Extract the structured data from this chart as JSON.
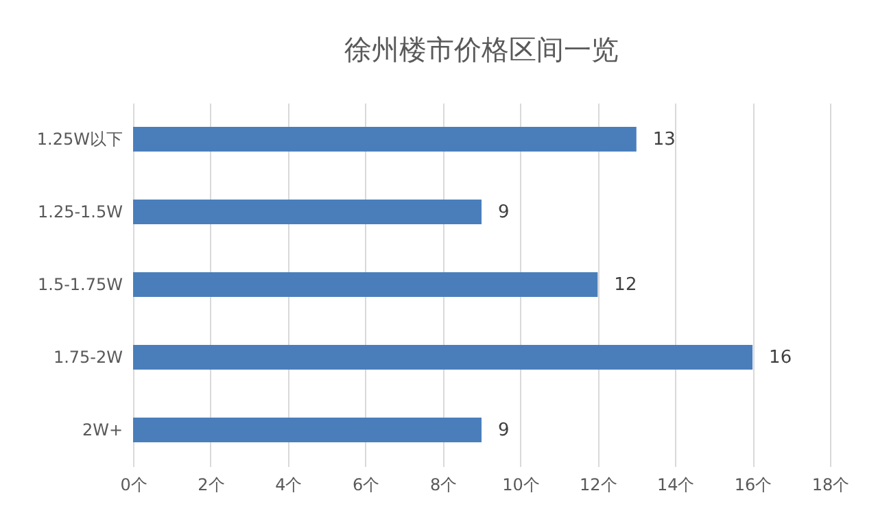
{
  "chart_data": {
    "type": "bar",
    "title": "徐州楼市价格区间一览",
    "orientation": "horizontal",
    "categories": [
      "1.25W以下",
      "1.25-1.5W",
      "1.5-1.75W",
      "1.75-2W",
      "2W+"
    ],
    "values": [
      13,
      9,
      12,
      16,
      9
    ],
    "color": "#4a7ebb",
    "xlim": [
      0,
      18
    ],
    "xticks": [
      {
        "value": 0,
        "label": "0个"
      },
      {
        "value": 2,
        "label": "2个"
      },
      {
        "value": 4,
        "label": "4个"
      },
      {
        "value": 6,
        "label": "6个"
      },
      {
        "value": 8,
        "label": "8个"
      },
      {
        "value": 10,
        "label": "10个"
      },
      {
        "value": 12,
        "label": "12个"
      },
      {
        "value": 14,
        "label": "14个"
      },
      {
        "value": 16,
        "label": "16个"
      },
      {
        "value": 18,
        "label": "18个"
      }
    ],
    "grid": "x",
    "data_labels": true
  }
}
